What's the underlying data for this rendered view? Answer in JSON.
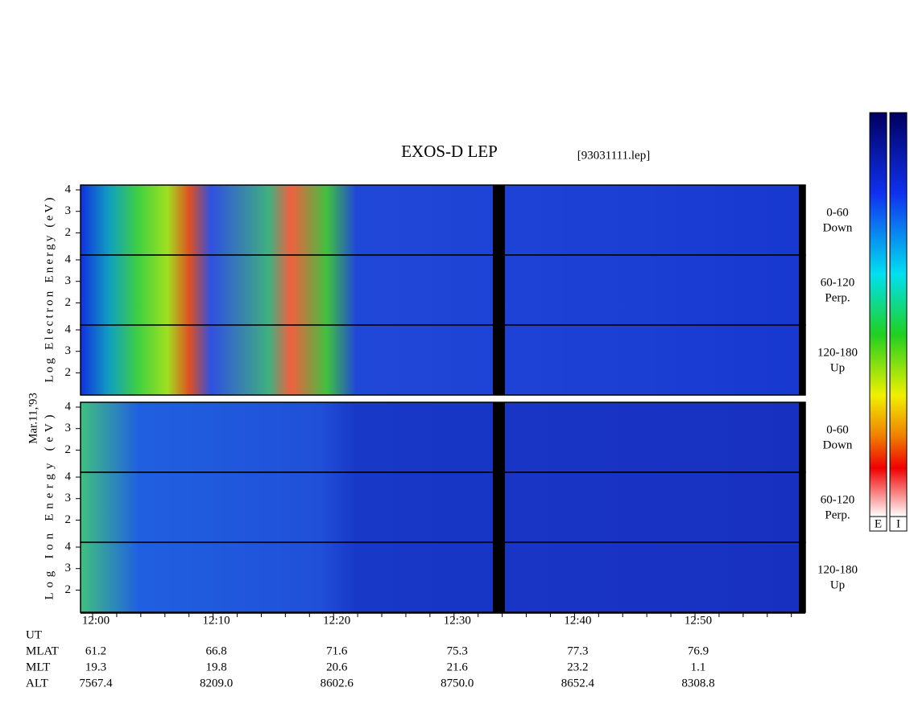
{
  "header": {
    "title": "EXOS-D LEP",
    "file": "[93031111.lep]"
  },
  "date": "Mar.11,'93",
  "groups": [
    {
      "label": "Log Electron Energy (eV)",
      "panels": [
        {
          "angle": "0-60",
          "direction": "Down"
        },
        {
          "angle": "60-120",
          "direction": "Perp."
        },
        {
          "angle": "120-180",
          "direction": "Up"
        }
      ]
    },
    {
      "label": "Log Ion Energy (eV)",
      "panels": [
        {
          "angle": "0-60",
          "direction": "Down"
        },
        {
          "angle": "60-120",
          "direction": "Perp."
        },
        {
          "angle": "120-180",
          "direction": "Up"
        }
      ]
    }
  ],
  "yticks": [
    2,
    3,
    4
  ],
  "colorbars": [
    "E",
    "I"
  ],
  "ephemeris": {
    "rows": [
      {
        "name": "UT",
        "values": [
          "12:00",
          "12:10",
          "12:20",
          "12:30",
          "12:40",
          "12:50"
        ]
      },
      {
        "name": "MLAT",
        "values": [
          "61.2",
          "66.8",
          "71.6",
          "75.3",
          "77.3",
          "76.9"
        ]
      },
      {
        "name": "MLT",
        "values": [
          "19.3",
          "19.8",
          "20.6",
          "21.6",
          "23.2",
          "1.1"
        ]
      },
      {
        "name": "ALT",
        "values": [
          "7567.4",
          "8209.0",
          "8602.6",
          "8750.0",
          "8652.4",
          "8308.8"
        ]
      }
    ]
  }
}
